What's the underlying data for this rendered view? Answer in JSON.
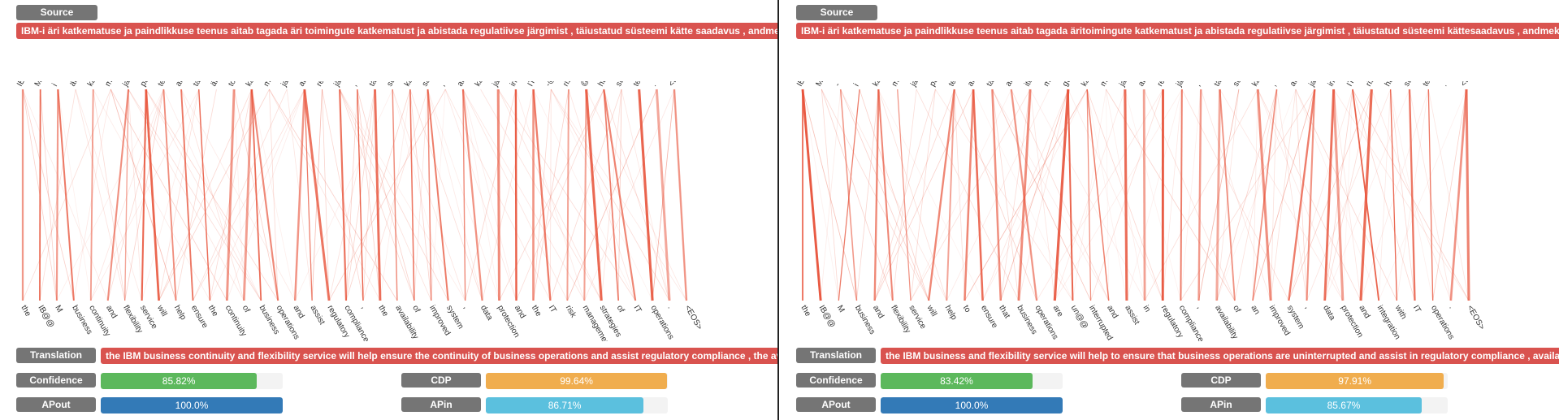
{
  "panels": [
    {
      "source_label": "Source",
      "source_text": "IBM-i äri katkematuse ja paindlikkuse teenus aitab tagada äri toimingute katkematust ja abistada regulatiivse järgimist , täiustatud süsteemi kätte saadavus , andmekaitse ja integreerimine IT-riskihalduse strateegiatega",
      "src_tokens": [
        "IB@@",
        "M-@@",
        "i",
        "äri",
        "katke@@",
        "matuse",
        "ja",
        "paindlikkuse",
        "teenus",
        "aitab",
        "tagada",
        "äri",
        "toimingute",
        "katke@@",
        "matust",
        "ja",
        "abistada",
        "regulatiivse",
        "järgimist",
        ",",
        "täiustatud",
        "süsteemi",
        "kätte",
        "saadavus",
        ",",
        "andme",
        "kaitse",
        "ja",
        "integreerimine",
        "IT",
        "-@@",
        "riski",
        "@@",
        "haldus",
        "strateegia@@",
        "tega",
        ".",
        "<EOS>"
      ],
      "tgt_tokens": [
        "the",
        "IB@@",
        "M",
        "business",
        "continuity",
        "and",
        "flexibility",
        "service",
        "will",
        "help",
        "ensure",
        "the",
        "continuity",
        "of",
        "business",
        "operations",
        "and",
        "assist",
        "regulatory",
        "compliance",
        ",",
        "the",
        "availability",
        "of",
        "improved",
        "system",
        ",",
        "data",
        "protection",
        "and",
        "the",
        "IT",
        "risk",
        "management",
        "strategies",
        "of",
        "IT",
        "operations",
        ".",
        "<EOS>"
      ],
      "translation_label": "Translation",
      "translation_text": "the IBM business continuity and flexibility service will help ensure the continuity of business operations and assist regulatory compliance , the availability of improved system , data protection and the IT risk management strategies of IT operations .",
      "metrics": {
        "confidence": {
          "label": "Confidence",
          "value": "85.82%",
          "fraction": 0.8582,
          "color": "#5cb85c"
        },
        "cdp": {
          "label": "CDP",
          "value": "99.64%",
          "fraction": 0.9964,
          "color": "#f0ad4e"
        },
        "apout": {
          "label": "APout",
          "value": "100.0%",
          "fraction": 1.0,
          "color": "#337ab7"
        },
        "apin": {
          "label": "APin",
          "value": "86.71%",
          "fraction": 0.8671,
          "color": "#5bc0de"
        }
      }
    },
    {
      "source_label": "Source",
      "source_text": "IBM-i äri katkematuse ja paindlikkuse teenus aitab tagada äritoimingute katkematust ja abistada regulatiivse järgimist , täiustatud süsteemi kättesaadavus , andmekaitse ja integreerimine IT-riskihalduse strateegiatega",
      "src_tokens": [
        "IB@@",
        "M@@",
        "-",
        "i",
        "katke@@",
        "matuse",
        "ja",
        "paindlikkuse",
        "teenus",
        "aitab",
        "tagada",
        "ar@@",
        "ito@@",
        "min@@",
        "gute",
        "katke@@",
        "matust",
        "ja",
        "abistada",
        "regulatiivse",
        "järgimist",
        ",",
        "täiustatud",
        "süsteemi",
        "kättesaadavus",
        ",",
        "andmekaitse",
        "ja",
        "integreerimine",
        "IT-@@",
        "riski",
        "haldus@@",
        "strateegia@@",
        "tega",
        ".",
        "<EOS>"
      ],
      "tgt_tokens": [
        "the",
        "IB@@",
        "M",
        "business",
        "and",
        "flexibility",
        "service",
        "will",
        "help",
        "to",
        "ensure",
        "that",
        "business",
        "operations",
        "are",
        "un@@",
        "interrupted",
        "and",
        "assist",
        "in",
        "regulatory",
        "compliance",
        ",",
        "availability",
        "of",
        "an",
        "improved",
        "system",
        ",",
        "data",
        "protection",
        "and",
        "integration",
        "with",
        "IT",
        "operations",
        ".",
        "<EOS>"
      ],
      "translation_label": "Translation",
      "translation_text": "the IBM business and flexibility service will help to ensure that business operations are uninterrupted and assist in regulatory compliance , availability of an improved system , data protection and integration with IT operations .",
      "metrics": {
        "confidence": {
          "label": "Confidence",
          "value": "83.42%",
          "fraction": 0.8342,
          "color": "#5cb85c"
        },
        "cdp": {
          "label": "CDP",
          "value": "97.91%",
          "fraction": 0.9791,
          "color": "#f0ad4e"
        },
        "apout": {
          "label": "APout",
          "value": "100.0%",
          "fraction": 1.0,
          "color": "#337ab7"
        },
        "apin": {
          "label": "APin",
          "value": "85.67%",
          "fraction": 0.8567,
          "color": "#5bc0de"
        }
      }
    }
  ]
}
